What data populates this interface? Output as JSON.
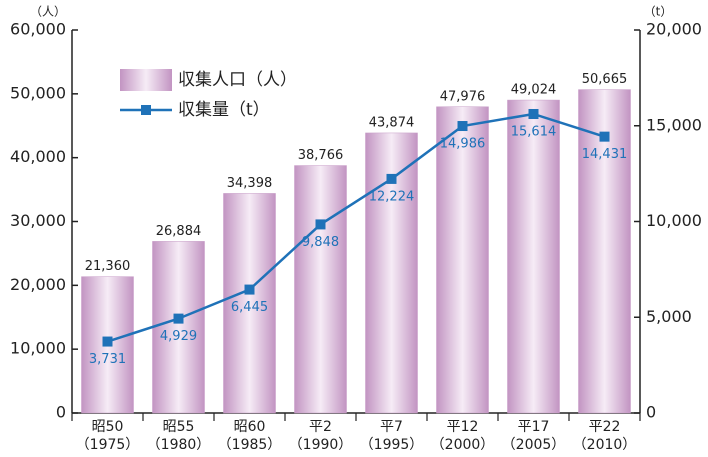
{
  "chart_data": {
    "type": "bar",
    "y_unit": "（人）",
    "y2_unit": "（t）",
    "categories": [
      "昭50",
      "昭55",
      "昭60",
      "平2",
      "平7",
      "平12",
      "平17",
      "平22"
    ],
    "category_years": [
      "（1975）",
      "（1980）",
      "（1985）",
      "（1990）",
      "（1995）",
      "（2000）",
      "（2005）",
      "（2010）"
    ],
    "series": [
      {
        "name": "収集人口（人）",
        "type": "bar",
        "color": "#c79cc7",
        "values": [
          21360,
          26884,
          34398,
          38766,
          43874,
          47976,
          49024,
          50665
        ],
        "value_labels": [
          "21,360",
          "26,884",
          "34,398",
          "38,766",
          "43,874",
          "47,976",
          "49,024",
          "50,665"
        ]
      },
      {
        "name": "収集量（t）",
        "type": "line",
        "axis": "y2",
        "color": "#1f72b8",
        "values": [
          3731,
          4929,
          6445,
          9848,
          12224,
          14986,
          15614,
          14431
        ],
        "value_labels": [
          "3,731",
          "4,929",
          "6,445",
          "9,848",
          "12,224",
          "14,986",
          "15,614",
          "14,431"
        ]
      }
    ],
    "ylim": [
      0,
      60000
    ],
    "yticks": [
      0,
      {
        "value": 10000,
        "label": "10,000"
      },
      {
        "value": 20000,
        "label": "20,000"
      },
      {
        "value": 30000,
        "label": "30,000"
      },
      {
        "value": 40000,
        "label": "40,000"
      },
      {
        "value": 50000,
        "label": "50,000"
      },
      {
        "value": 60000,
        "label": "60,000"
      }
    ],
    "y2lim": [
      0,
      20000
    ],
    "y2ticks": [
      0,
      {
        "value": 5000,
        "label": "5,000"
      },
      {
        "value": 10000,
        "label": "10,000"
      },
      {
        "value": 15000,
        "label": "15,000"
      },
      {
        "value": 20000,
        "label": "20,000"
      }
    ],
    "legend": "upper left"
  }
}
